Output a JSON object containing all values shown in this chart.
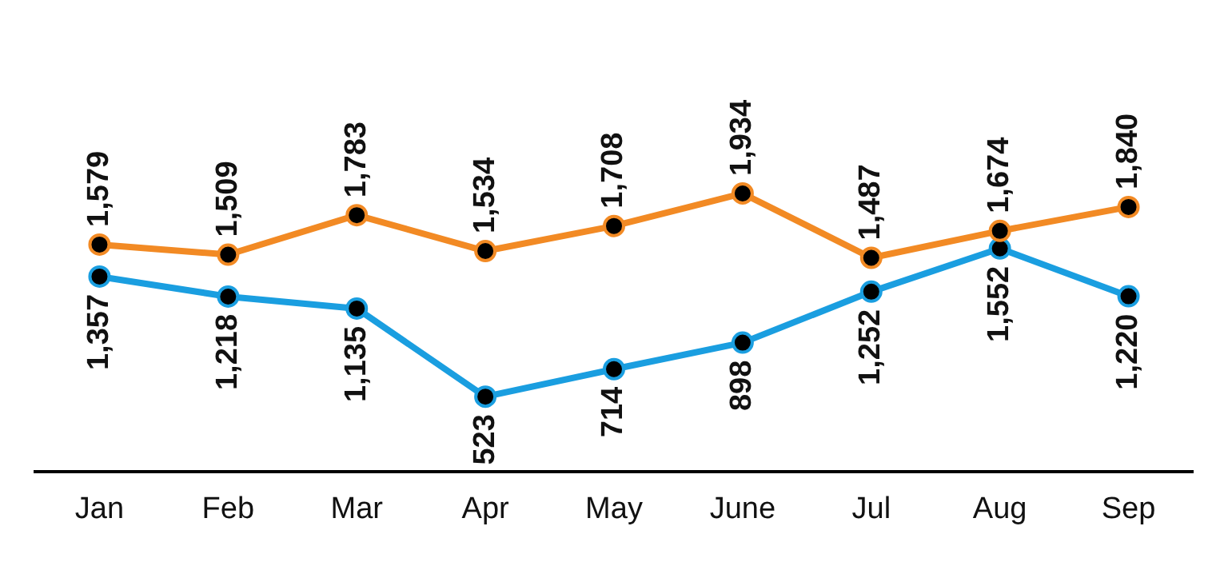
{
  "chart_data": {
    "type": "line",
    "categories": [
      "Jan",
      "Feb",
      "Mar",
      "Apr",
      "May",
      "June",
      "Jul",
      "Aug",
      "Sep"
    ],
    "series": [
      {
        "color": "#f28a24",
        "values": [
          1579,
          1509,
          1783,
          1534,
          1708,
          1934,
          1487,
          1674,
          1840
        ],
        "value_labels": [
          "1,579",
          "1,509",
          "1,783",
          "1,534",
          "1,708",
          "1,934",
          "1,487",
          "1,674",
          "1,840"
        ]
      },
      {
        "color": "#1a9ee0",
        "values": [
          1357,
          1218,
          1135,
          523,
          714,
          898,
          1252,
          1552,
          1220
        ],
        "value_labels": [
          "1,357",
          "1,218",
          "1,135",
          "523",
          "714",
          "898",
          "1,252",
          "1,552",
          "1,220"
        ]
      }
    ],
    "marker": "circle",
    "line_style": "solid"
  }
}
